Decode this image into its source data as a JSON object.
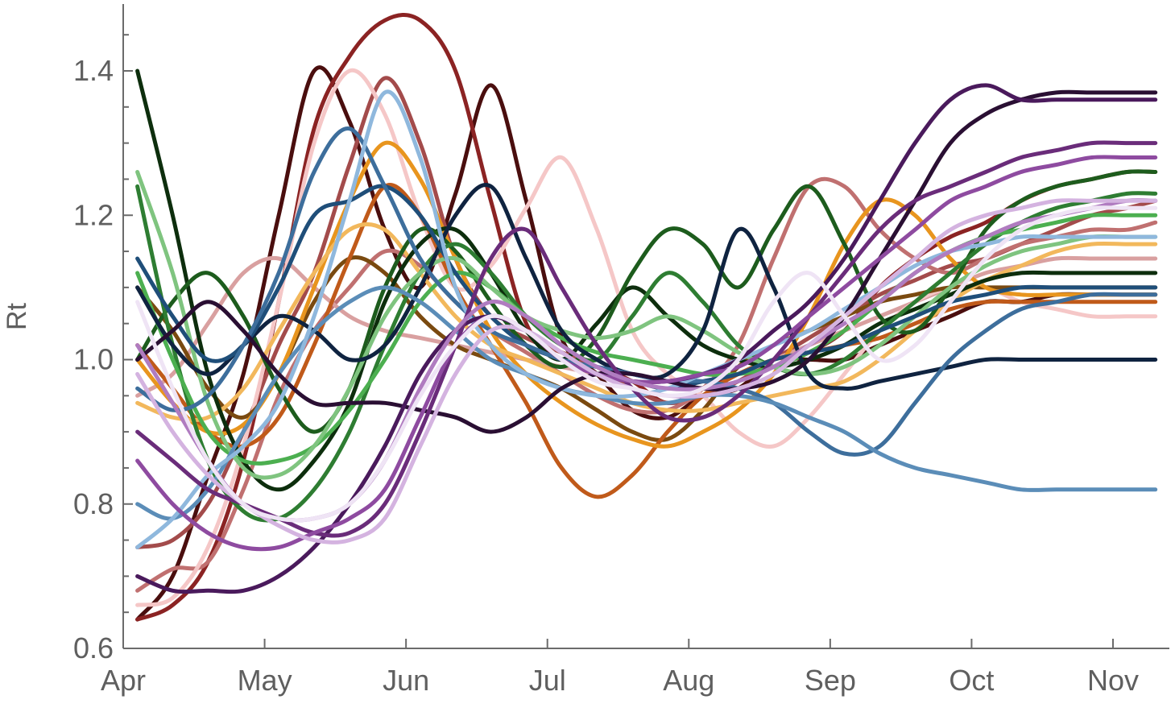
{
  "chart_data": {
    "type": "line",
    "title": "",
    "xlabel": "",
    "ylabel": "Rt",
    "x_ticks": [
      "Apr",
      "May",
      "Jun",
      "Jul",
      "Aug",
      "Sep",
      "Oct",
      "Nov"
    ],
    "y_ticks": [
      "0.6",
      "0.8",
      "1.0",
      "1.2",
      "1.4"
    ],
    "x_tick_values": [
      0,
      1,
      2,
      3,
      4,
      5,
      6,
      7
    ],
    "y_tick_values": [
      0.6,
      0.8,
      1.0,
      1.2,
      1.4
    ],
    "xlim": [
      0,
      7.4
    ],
    "ylim": [
      0.6,
      1.49
    ],
    "y_minor_step": 0.05,
    "grid": false,
    "legend": "none",
    "x": [
      0.1,
      0.35,
      0.6,
      0.85,
      1.1,
      1.35,
      1.6,
      1.85,
      2.1,
      2.35,
      2.6,
      2.85,
      3.1,
      3.35,
      3.6,
      3.85,
      4.1,
      4.35,
      4.6,
      4.85,
      5.1,
      5.35,
      5.6,
      5.85,
      6.1,
      6.35,
      6.6,
      6.85,
      7.1,
      7.3
    ],
    "series": [
      {
        "color": "#4a0e0e",
        "values": [
          0.64,
          0.7,
          0.84,
          0.98,
          1.2,
          1.4,
          1.33,
          1.18,
          1.1,
          1.23,
          1.38,
          1.22,
          1.03,
          0.98,
          0.93,
          0.92,
          0.95,
          0.96,
          1.0,
          1.0,
          1.0,
          1.02,
          1.04,
          1.06,
          1.08,
          1.08,
          1.09,
          1.09,
          1.09,
          1.09
        ]
      },
      {
        "color": "#8b2323",
        "values": [
          0.64,
          0.66,
          0.72,
          0.86,
          1.08,
          1.32,
          1.42,
          1.47,
          1.47,
          1.4,
          1.22,
          1.05,
          1.0,
          0.99,
          0.97,
          0.94,
          0.96,
          0.98,
          0.99,
          1.01,
          1.04,
          1.1,
          1.14,
          1.17,
          1.19,
          1.22,
          1.24,
          1.25,
          1.26,
          1.26
        ]
      },
      {
        "color": "#a34b4b",
        "values": [
          0.74,
          0.75,
          0.8,
          0.9,
          1.02,
          1.12,
          1.27,
          1.39,
          1.3,
          1.14,
          1.06,
          1.03,
          1.01,
          0.99,
          0.96,
          0.94,
          0.95,
          0.97,
          1.0,
          1.03,
          1.06,
          1.09,
          1.11,
          1.13,
          1.14,
          1.16,
          1.18,
          1.2,
          1.21,
          1.22
        ]
      },
      {
        "color": "#c07070",
        "values": [
          0.68,
          0.71,
          0.72,
          0.82,
          0.95,
          1.04,
          1.1,
          1.15,
          1.13,
          1.08,
          1.04,
          1.01,
          0.98,
          0.95,
          0.93,
          0.93,
          0.96,
          1.02,
          1.14,
          1.24,
          1.24,
          1.18,
          1.14,
          1.12,
          1.14,
          1.16,
          1.17,
          1.18,
          1.18,
          1.19
        ]
      },
      {
        "color": "#d9a0a0",
        "values": [
          0.95,
          0.98,
          1.05,
          1.12,
          1.14,
          1.1,
          1.06,
          1.04,
          1.03,
          1.02,
          1.01,
          1.0,
          0.99,
          0.98,
          0.97,
          0.96,
          0.97,
          0.98,
          1.0,
          1.02,
          1.04,
          1.06,
          1.08,
          1.1,
          1.12,
          1.13,
          1.14,
          1.14,
          1.14,
          1.14
        ]
      },
      {
        "color": "#f5c7c7",
        "values": [
          0.66,
          0.67,
          0.74,
          0.88,
          1.08,
          1.3,
          1.4,
          1.34,
          1.2,
          1.1,
          1.13,
          1.21,
          1.28,
          1.18,
          1.04,
          0.98,
          0.95,
          0.9,
          0.88,
          0.92,
          0.98,
          1.04,
          1.08,
          1.1,
          1.1,
          1.08,
          1.07,
          1.06,
          1.06,
          1.06
        ]
      },
      {
        "color": "#7a4a10",
        "values": [
          1.1,
          1.04,
          0.96,
          0.92,
          0.98,
          1.08,
          1.14,
          1.12,
          1.06,
          1.02,
          1.0,
          0.98,
          0.96,
          0.93,
          0.9,
          0.89,
          0.93,
          0.99,
          1.02,
          1.04,
          1.06,
          1.08,
          1.09,
          1.1,
          1.1,
          1.1,
          1.1,
          1.1,
          1.1,
          1.1
        ]
      },
      {
        "color": "#c05a1a",
        "values": [
          1.02,
          0.96,
          0.9,
          0.88,
          0.92,
          1.02,
          1.14,
          1.24,
          1.2,
          1.1,
          1.02,
          0.94,
          0.85,
          0.81,
          0.84,
          0.9,
          0.95,
          0.98,
          1.0,
          1.01,
          1.02,
          1.03,
          1.05,
          1.07,
          1.08,
          1.08,
          1.08,
          1.08,
          1.08,
          1.08
        ]
      },
      {
        "color": "#e8951e",
        "values": [
          1.0,
          0.94,
          0.9,
          0.91,
          0.98,
          1.1,
          1.22,
          1.3,
          1.25,
          1.14,
          1.04,
          0.98,
          0.94,
          0.91,
          0.89,
          0.88,
          0.9,
          0.93,
          0.98,
          1.06,
          1.16,
          1.22,
          1.2,
          1.14,
          1.1,
          1.09,
          1.09,
          1.09,
          1.09,
          1.09
        ]
      },
      {
        "color": "#f2b85c",
        "values": [
          0.94,
          0.92,
          0.92,
          0.96,
          1.04,
          1.12,
          1.18,
          1.18,
          1.12,
          1.06,
          1.02,
          1.0,
          0.98,
          0.96,
          0.94,
          0.93,
          0.93,
          0.94,
          0.95,
          0.96,
          0.97,
          1.0,
          1.04,
          1.08,
          1.11,
          1.13,
          1.15,
          1.16,
          1.16,
          1.16
        ]
      },
      {
        "color": "#0d2e0d",
        "values": [
          1.4,
          1.2,
          0.98,
          0.86,
          0.82,
          0.86,
          0.94,
          1.08,
          1.16,
          1.18,
          1.12,
          1.04,
          1.0,
          1.05,
          1.1,
          1.06,
          1.02,
          1.0,
          0.99,
          1.0,
          1.02,
          1.05,
          1.07,
          1.09,
          1.11,
          1.12,
          1.12,
          1.12,
          1.12,
          1.12
        ]
      },
      {
        "color": "#1d5c1d",
        "values": [
          1.0,
          1.08,
          1.12,
          1.06,
          0.96,
          0.9,
          0.96,
          1.1,
          1.18,
          1.15,
          1.08,
          1.02,
          0.99,
          1.03,
          1.12,
          1.18,
          1.16,
          1.1,
          1.18,
          1.24,
          1.16,
          1.06,
          1.04,
          1.1,
          1.18,
          1.22,
          1.24,
          1.25,
          1.26,
          1.26
        ]
      },
      {
        "color": "#2e7d32",
        "values": [
          1.24,
          1.02,
          0.86,
          0.79,
          0.78,
          0.82,
          0.9,
          1.02,
          1.12,
          1.16,
          1.12,
          1.06,
          1.02,
          1.0,
          1.06,
          1.12,
          1.08,
          1.02,
          0.99,
          0.98,
          1.0,
          1.04,
          1.08,
          1.12,
          1.16,
          1.19,
          1.21,
          1.22,
          1.23,
          1.23
        ]
      },
      {
        "color": "#4caf50",
        "values": [
          1.12,
          1.0,
          0.9,
          0.86,
          0.86,
          0.88,
          0.93,
          1.0,
          1.08,
          1.12,
          1.1,
          1.06,
          1.03,
          1.01,
          1.0,
          0.99,
          0.98,
          0.98,
          0.99,
          1.01,
          1.04,
          1.08,
          1.12,
          1.15,
          1.17,
          1.18,
          1.19,
          1.2,
          1.2,
          1.2
        ]
      },
      {
        "color": "#7fc47f",
        "values": [
          1.26,
          1.12,
          0.94,
          0.85,
          0.84,
          0.88,
          0.96,
          1.06,
          1.12,
          1.14,
          1.1,
          1.06,
          1.04,
          1.03,
          1.04,
          1.06,
          1.04,
          1.01,
          0.99,
          0.98,
          0.99,
          1.02,
          1.06,
          1.1,
          1.13,
          1.15,
          1.16,
          1.17,
          1.17,
          1.17
        ]
      },
      {
        "color": "#0f2340",
        "values": [
          1.1,
          1.02,
          0.98,
          1.02,
          1.06,
          1.04,
          1.0,
          1.02,
          1.1,
          1.2,
          1.24,
          1.14,
          1.04,
          1.0,
          0.98,
          0.98,
          1.04,
          1.18,
          1.1,
          0.98,
          0.96,
          0.97,
          0.98,
          0.99,
          1.0,
          1.0,
          1.0,
          1.0,
          1.0,
          1.0
        ]
      },
      {
        "color": "#1f4e79",
        "values": [
          1.14,
          1.06,
          1.0,
          1.02,
          1.1,
          1.2,
          1.22,
          1.24,
          1.2,
          1.12,
          1.06,
          1.02,
          1.0,
          0.98,
          0.97,
          0.96,
          0.97,
          0.98,
          1.0,
          1.01,
          1.02,
          1.04,
          1.06,
          1.08,
          1.09,
          1.1,
          1.1,
          1.1,
          1.1,
          1.1
        ]
      },
      {
        "color": "#3d6e9c",
        "values": [
          0.96,
          0.93,
          0.95,
          1.02,
          1.12,
          1.26,
          1.32,
          1.24,
          1.14,
          1.08,
          1.04,
          1.02,
          1.0,
          0.99,
          0.98,
          0.97,
          0.97,
          0.96,
          0.94,
          0.9,
          0.87,
          0.88,
          0.94,
          1.0,
          1.04,
          1.07,
          1.08,
          1.09,
          1.09,
          1.09
        ]
      },
      {
        "color": "#5b8db8",
        "values": [
          0.8,
          0.78,
          0.82,
          0.9,
          0.98,
          1.04,
          1.08,
          1.1,
          1.08,
          1.04,
          1.0,
          0.98,
          0.96,
          0.95,
          0.94,
          0.94,
          0.95,
          0.95,
          0.94,
          0.92,
          0.9,
          0.87,
          0.85,
          0.84,
          0.83,
          0.82,
          0.82,
          0.82,
          0.82,
          0.82
        ]
      },
      {
        "color": "#8fb8dd",
        "values": [
          0.74,
          0.78,
          0.84,
          0.88,
          0.94,
          1.06,
          1.22,
          1.37,
          1.28,
          1.1,
          1.02,
          0.98,
          0.96,
          0.95,
          0.95,
          0.96,
          0.98,
          1.0,
          1.02,
          1.04,
          1.07,
          1.1,
          1.13,
          1.15,
          1.16,
          1.17,
          1.17,
          1.17,
          1.17,
          1.17
        ]
      },
      {
        "color": "#2a0f33",
        "values": [
          1.0,
          1.04,
          1.08,
          1.04,
          0.98,
          0.94,
          0.94,
          0.94,
          0.93,
          0.92,
          0.9,
          0.92,
          0.96,
          0.98,
          0.98,
          0.97,
          0.96,
          0.96,
          0.97,
          1.0,
          1.06,
          1.14,
          1.22,
          1.3,
          1.34,
          1.36,
          1.37,
          1.37,
          1.37,
          1.37
        ]
      },
      {
        "color": "#4a1a5c",
        "values": [
          0.7,
          0.68,
          0.68,
          0.68,
          0.7,
          0.74,
          0.8,
          0.88,
          0.98,
          1.04,
          1.06,
          1.04,
          1.0,
          0.98,
          0.97,
          0.97,
          0.98,
          1.0,
          1.04,
          1.08,
          1.14,
          1.22,
          1.3,
          1.36,
          1.38,
          1.36,
          1.36,
          1.36,
          1.36,
          1.36
        ]
      },
      {
        "color": "#6a2c7a",
        "values": [
          0.9,
          0.86,
          0.82,
          0.8,
          0.78,
          0.76,
          0.76,
          0.8,
          0.9,
          1.02,
          1.14,
          1.18,
          1.1,
          1.02,
          0.96,
          0.92,
          0.92,
          0.95,
          1.0,
          1.06,
          1.12,
          1.18,
          1.22,
          1.24,
          1.26,
          1.28,
          1.29,
          1.3,
          1.3,
          1.3
        ]
      },
      {
        "color": "#8e4ba0",
        "values": [
          0.86,
          0.8,
          0.76,
          0.74,
          0.74,
          0.76,
          0.78,
          0.82,
          0.92,
          1.02,
          1.06,
          1.04,
          1.0,
          0.98,
          0.97,
          0.97,
          0.98,
          0.99,
          1.02,
          1.06,
          1.1,
          1.14,
          1.18,
          1.22,
          1.24,
          1.26,
          1.27,
          1.28,
          1.28,
          1.28
        ]
      },
      {
        "color": "#b07cc0",
        "values": [
          1.02,
          0.94,
          0.86,
          0.8,
          0.78,
          0.78,
          0.8,
          0.86,
          0.96,
          1.04,
          1.08,
          1.06,
          1.02,
          0.99,
          0.97,
          0.96,
          0.96,
          0.97,
          0.99,
          1.02,
          1.05,
          1.08,
          1.12,
          1.15,
          1.17,
          1.19,
          1.2,
          1.21,
          1.22,
          1.22
        ]
      },
      {
        "color": "#d4b3e0",
        "values": [
          0.98,
          0.9,
          0.84,
          0.8,
          0.77,
          0.75,
          0.75,
          0.78,
          0.88,
          0.98,
          1.04,
          1.04,
          1.01,
          0.98,
          0.96,
          0.95,
          0.95,
          0.96,
          0.98,
          1.02,
          1.06,
          1.1,
          1.14,
          1.18,
          1.2,
          1.21,
          1.22,
          1.22,
          1.22,
          1.22
        ]
      },
      {
        "color": "#efe4f5",
        "values": [
          1.08,
          0.96,
          0.86,
          0.8,
          0.78,
          0.78,
          0.8,
          0.86,
          0.95,
          1.02,
          1.06,
          1.04,
          1.0,
          0.97,
          0.96,
          0.95,
          0.96,
          1.0,
          1.08,
          1.12,
          1.06,
          1.0,
          1.02,
          1.08,
          1.14,
          1.18,
          1.2,
          1.21,
          1.21,
          1.21
        ]
      }
    ]
  }
}
